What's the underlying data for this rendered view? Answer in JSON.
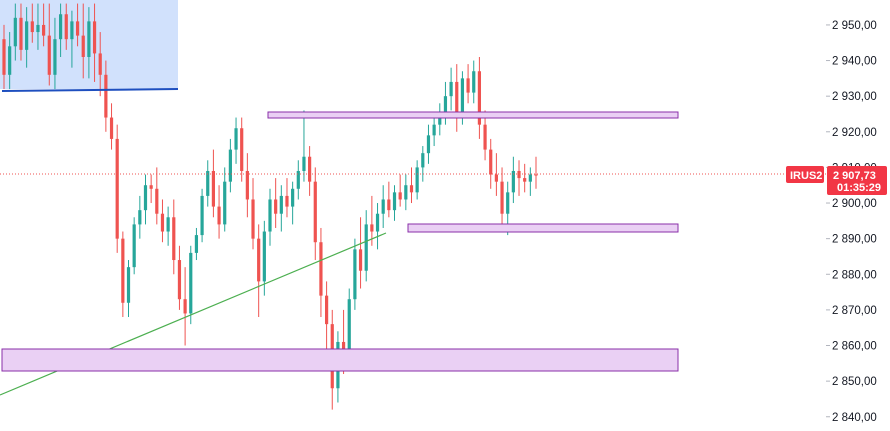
{
  "chart_data": {
    "type": "candlestick",
    "title": "",
    "symbol": "IRUS2",
    "last_price": "2 907,73",
    "countdown": "01:35:29",
    "y_axis": {
      "min": 2836,
      "max": 2957,
      "ticks": [
        2950,
        2940,
        2930,
        2920,
        2910,
        2900,
        2890,
        2880,
        2870,
        2860,
        2850,
        2840
      ],
      "tick_labels": [
        "2 950,00",
        "2 940,00",
        "2 930,00",
        "2 920,00",
        "2 910,00",
        "2 900,00",
        "2 890,00",
        "2 880,00",
        "2 870,00",
        "2 860,00",
        "2 850,00",
        "2 840,00"
      ]
    },
    "grid": false,
    "candle_count": 95,
    "candles": [
      [
        2946,
        2950,
        2932,
        2936
      ],
      [
        2936,
        2948,
        2932,
        2944
      ],
      [
        2944,
        2956,
        2940,
        2952
      ],
      [
        2952,
        2956,
        2940,
        2943
      ],
      [
        2943,
        2955,
        2938,
        2951
      ],
      [
        2951,
        2956,
        2945,
        2948
      ],
      [
        2948,
        2956,
        2943,
        2950
      ],
      [
        2950,
        2956,
        2944,
        2947
      ],
      [
        2947,
        2956,
        2933,
        2936
      ],
      [
        2936,
        2952,
        2932,
        2946
      ],
      [
        2946,
        2956,
        2941,
        2953
      ],
      [
        2953,
        2956,
        2943,
        2946
      ],
      [
        2946,
        2954,
        2938,
        2951
      ],
      [
        2951,
        2956,
        2944,
        2947
      ],
      [
        2947,
        2956,
        2935,
        2941
      ],
      [
        2941,
        2955,
        2935,
        2951
      ],
      [
        2951,
        2956,
        2934,
        2942
      ],
      [
        2942,
        2948,
        2930,
        2936
      ],
      [
        2936,
        2940,
        2920,
        2924
      ],
      [
        2924,
        2928,
        2915,
        2918
      ],
      [
        2918,
        2922,
        2886,
        2890
      ],
      [
        2890,
        2892,
        2868,
        2872
      ],
      [
        2872,
        2884,
        2868,
        2882
      ],
      [
        2882,
        2896,
        2880,
        2894
      ],
      [
        2894,
        2902,
        2890,
        2898
      ],
      [
        2898,
        2908,
        2894,
        2905
      ],
      [
        2905,
        2908,
        2900,
        2904
      ],
      [
        2904,
        2910,
        2894,
        2897
      ],
      [
        2897,
        2901,
        2889,
        2892
      ],
      [
        2892,
        2899,
        2888,
        2896
      ],
      [
        2896,
        2901,
        2880,
        2884
      ],
      [
        2884,
        2888,
        2870,
        2873
      ],
      [
        2873,
        2882,
        2860,
        2869
      ],
      [
        2869,
        2888,
        2866,
        2886
      ],
      [
        2886,
        2893,
        2884,
        2891
      ],
      [
        2891,
        2904,
        2889,
        2902
      ],
      [
        2902,
        2912,
        2899,
        2909
      ],
      [
        2909,
        2915,
        2896,
        2899
      ],
      [
        2899,
        2905,
        2890,
        2894
      ],
      [
        2894,
        2910,
        2892,
        2906
      ],
      [
        2906,
        2918,
        2903,
        2915
      ],
      [
        2915,
        2924,
        2911,
        2921
      ],
      [
        2921,
        2924,
        2906,
        2909
      ],
      [
        2909,
        2914,
        2896,
        2901
      ],
      [
        2901,
        2907,
        2887,
        2890
      ],
      [
        2890,
        2894,
        2868,
        2878
      ],
      [
        2878,
        2895,
        2874,
        2892
      ],
      [
        2892,
        2904,
        2888,
        2901
      ],
      [
        2901,
        2907,
        2893,
        2897
      ],
      [
        2897,
        2905,
        2892,
        2902
      ],
      [
        2902,
        2907,
        2896,
        2899
      ],
      [
        2899,
        2906,
        2894,
        2904
      ],
      [
        2904,
        2912,
        2901,
        2909
      ],
      [
        2909,
        2926,
        2906,
        2913
      ],
      [
        2913,
        2916,
        2902,
        2906
      ],
      [
        2906,
        2910,
        2884,
        2889
      ],
      [
        2889,
        2893,
        2868,
        2874
      ],
      [
        2874,
        2878,
        2856,
        2866
      ],
      [
        2866,
        2870,
        2842,
        2848
      ],
      [
        2848,
        2864,
        2844,
        2861
      ],
      [
        2861,
        2870,
        2852,
        2857
      ],
      [
        2857,
        2876,
        2855,
        2873
      ],
      [
        2873,
        2890,
        2870,
        2887
      ],
      [
        2887,
        2896,
        2876,
        2881
      ],
      [
        2881,
        2898,
        2878,
        2894
      ],
      [
        2894,
        2902,
        2888,
        2892
      ],
      [
        2892,
        2900,
        2887,
        2897
      ],
      [
        2897,
        2905,
        2893,
        2901
      ],
      [
        2901,
        2906,
        2896,
        2898
      ],
      [
        2898,
        2905,
        2895,
        2903
      ],
      [
        2903,
        2908,
        2899,
        2901
      ],
      [
        2901,
        2908,
        2898,
        2905
      ],
      [
        2905,
        2910,
        2900,
        2903
      ],
      [
        2903,
        2912,
        2901,
        2910
      ],
      [
        2910,
        2916,
        2906,
        2914
      ],
      [
        2914,
        2922,
        2911,
        2919
      ],
      [
        2919,
        2925,
        2916,
        2922
      ],
      [
        2922,
        2928,
        2919,
        2925
      ],
      [
        2925,
        2934,
        2922,
        2930
      ],
      [
        2930,
        2938,
        2926,
        2934
      ],
      [
        2934,
        2939,
        2920,
        2924
      ],
      [
        2924,
        2937,
        2922,
        2935
      ],
      [
        2935,
        2939,
        2928,
        2931
      ],
      [
        2931,
        2940,
        2928,
        2937
      ],
      [
        2937,
        2941,
        2918,
        2922
      ],
      [
        2922,
        2926,
        2912,
        2915
      ],
      [
        2915,
        2918,
        2904,
        2908
      ],
      [
        2908,
        2914,
        2902,
        2906
      ],
      [
        2906,
        2910,
        2893,
        2897
      ],
      [
        2897,
        2906,
        2891,
        2903
      ],
      [
        2903,
        2913,
        2900,
        2909
      ],
      [
        2909,
        2912,
        2902,
        2907
      ],
      [
        2907,
        2911,
        2903,
        2906
      ],
      [
        2906,
        2910,
        2902,
        2908
      ],
      [
        2908,
        2913,
        2904,
        2907.73
      ]
    ],
    "colors": {
      "up": "#26a69a",
      "down": "#ef5350",
      "price_tag": "#f23645",
      "zone_fill": "#ead0f4",
      "zone_border": "#8a2fa8",
      "trendline": "#1e4fbf",
      "support": "#4caf50"
    }
  },
  "watermark": ""
}
